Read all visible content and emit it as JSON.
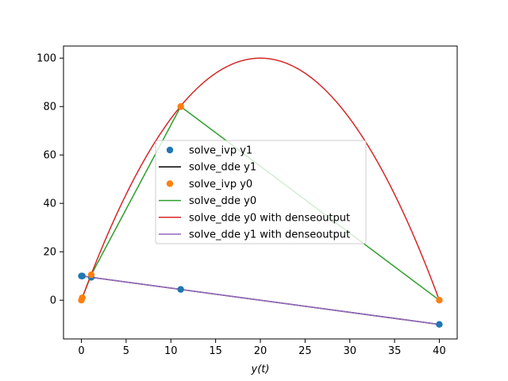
{
  "chart_data": {
    "type": "line",
    "title": "",
    "xlabel": "y(t)",
    "ylabel": "",
    "xlim": [
      -2,
      42
    ],
    "ylim": [
      -16,
      105
    ],
    "xticks": [
      0,
      5,
      10,
      15,
      20,
      25,
      30,
      35,
      40
    ],
    "yticks": [
      0,
      20,
      40,
      60,
      80,
      100
    ],
    "grid": false,
    "legend_position": "center",
    "series": [
      {
        "name": "solve_ivp y1",
        "kind": "scatter",
        "color": "#1f77b4",
        "x": [
          0,
          0.1,
          1.1,
          11.1,
          40
        ],
        "y": [
          10,
          9.99,
          9.45,
          4.45,
          -10
        ]
      },
      {
        "name": "solve_dde y1",
        "kind": "line",
        "color": "#000000",
        "x": [
          0,
          0.1,
          1.1,
          11.1,
          40
        ],
        "y": [
          10,
          9.99,
          9.45,
          4.45,
          -10
        ]
      },
      {
        "name": "solve_ivp y0",
        "kind": "scatter",
        "color": "#ff7f0e",
        "x": [
          0,
          0.1,
          1.1,
          11.1,
          40
        ],
        "y": [
          0,
          1,
          10.5,
          80,
          0
        ]
      },
      {
        "name": "solve_dde y0",
        "kind": "line",
        "color": "#2ca02c",
        "x": [
          0,
          0.1,
          1.1,
          11.1,
          40
        ],
        "y": [
          0,
          1,
          10.5,
          80,
          0
        ]
      },
      {
        "name": "solve_dde y0 with denseoutput",
        "kind": "curve",
        "color": "#d62728",
        "function": "-0.25*x*(x-40)",
        "x_range": [
          0,
          40
        ]
      },
      {
        "name": "solve_dde y1 with denseoutput",
        "kind": "curve",
        "color": "#9467bd",
        "function": "10-0.5*x",
        "x_range": [
          0,
          40
        ]
      }
    ]
  }
}
